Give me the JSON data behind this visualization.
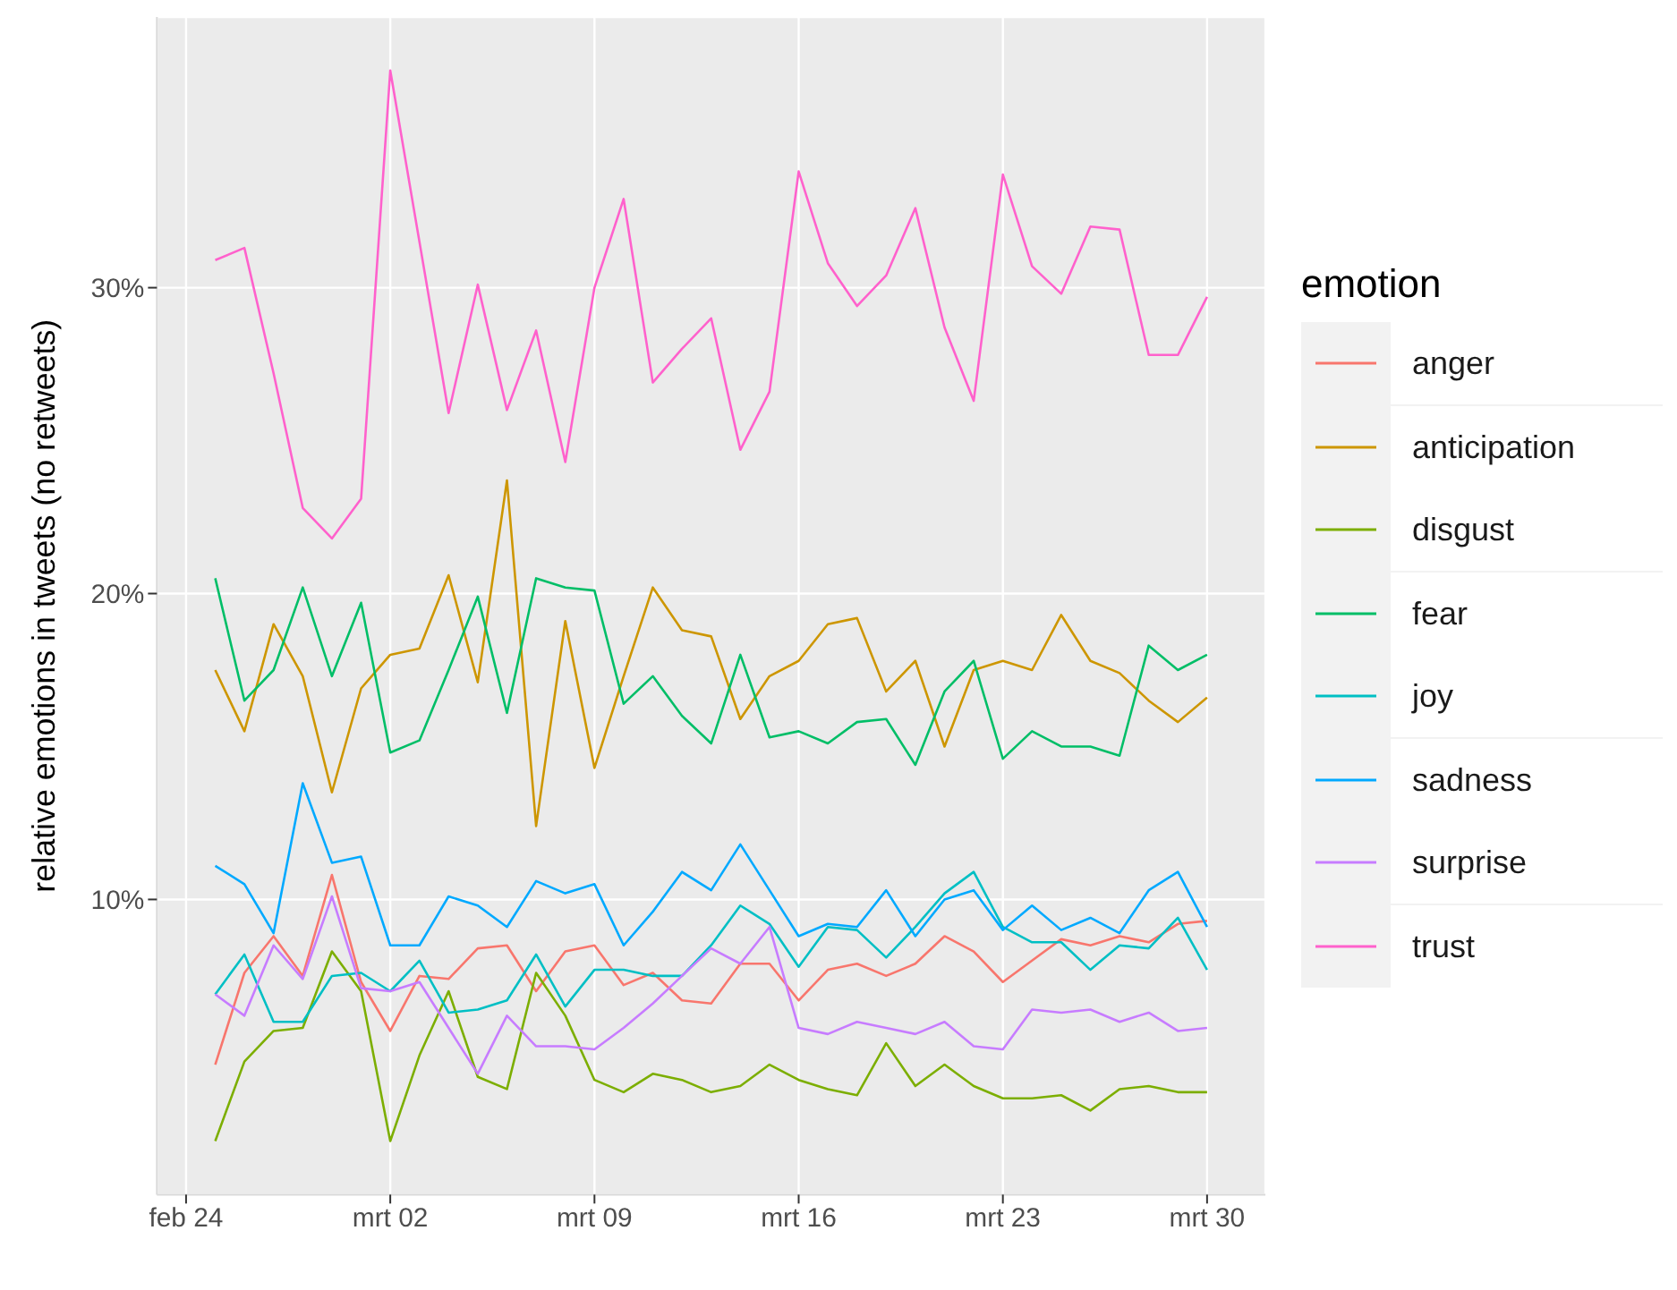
{
  "chart_data": {
    "type": "line",
    "ylabel": "relative emotions in tweets (no retweets)",
    "legend_title": "emotion",
    "legend": "right",
    "grid": true,
    "marker": "none",
    "line_style": "solid",
    "x": [
      "--02-25",
      "--02-26",
      "--02-27",
      "--02-28",
      "--02-29",
      "--03-01",
      "--03-02",
      "--03-03",
      "--03-04",
      "--03-05",
      "--03-06",
      "--03-07",
      "--03-08",
      "--03-09",
      "--03-10",
      "--03-11",
      "--03-12",
      "--03-13",
      "--03-14",
      "--03-15",
      "--03-16",
      "--03-17",
      "--03-18",
      "--03-19",
      "--03-20",
      "--03-21",
      "--03-22",
      "--03-23",
      "--03-24",
      "--03-25",
      "--03-26",
      "--03-27",
      "--03-28",
      "--03-29",
      "--03-30"
    ],
    "xlim": [
      "--02-23",
      "--04-01"
    ],
    "xticks": [
      {
        "value": "--02-24",
        "label": "feb 24"
      },
      {
        "value": "--03-02",
        "label": "mrt 02"
      },
      {
        "value": "--03-09",
        "label": "mrt 09"
      },
      {
        "value": "--03-16",
        "label": "mrt 16"
      },
      {
        "value": "--03-23",
        "label": "mrt 23"
      },
      {
        "value": "--03-30",
        "label": "mrt 30"
      }
    ],
    "ylim": [
      0.35,
      38.85
    ],
    "yticks": [
      {
        "value": 10,
        "label": "10%"
      },
      {
        "value": 20,
        "label": "20%"
      },
      {
        "value": 30,
        "label": "30%"
      }
    ],
    "series": [
      {
        "name": "anger",
        "color": "#f8766d",
        "values": [
          4.6,
          7.6,
          8.8,
          7.5,
          10.8,
          7.3,
          5.7,
          7.5,
          7.4,
          8.4,
          8.5,
          7.0,
          8.3,
          8.5,
          7.2,
          7.6,
          6.7,
          6.6,
          7.9,
          7.9,
          6.7,
          7.7,
          7.9,
          7.5,
          7.9,
          8.8,
          8.3,
          7.3,
          8.0,
          8.7,
          8.5,
          8.8,
          8.6,
          9.2,
          9.3
        ]
      },
      {
        "name": "anticipation",
        "color": "#cd9600",
        "values": [
          17.5,
          15.5,
          19.0,
          17.3,
          13.5,
          16.9,
          18.0,
          18.2,
          20.6,
          17.1,
          23.7,
          12.4,
          19.1,
          14.3,
          17.3,
          20.2,
          18.8,
          18.6,
          15.9,
          17.3,
          17.8,
          19.0,
          19.2,
          16.8,
          17.8,
          15.0,
          17.5,
          17.8,
          17.5,
          19.3,
          17.8,
          17.4,
          16.5,
          15.8,
          16.6
        ]
      },
      {
        "name": "disgust",
        "color": "#7cae00",
        "values": [
          2.1,
          4.7,
          5.7,
          5.8,
          8.3,
          7.0,
          2.1,
          4.9,
          7.0,
          4.2,
          3.8,
          7.6,
          6.2,
          4.1,
          3.7,
          4.3,
          4.1,
          3.7,
          3.9,
          4.6,
          4.1,
          3.8,
          3.6,
          5.3,
          3.9,
          4.6,
          3.9,
          3.5,
          3.5,
          3.6,
          3.1,
          3.8,
          3.9,
          3.7,
          3.7
        ]
      },
      {
        "name": "fear",
        "color": "#00be67",
        "values": [
          20.5,
          16.5,
          17.5,
          20.2,
          17.3,
          19.7,
          14.8,
          15.2,
          17.5,
          19.9,
          16.1,
          20.5,
          20.2,
          20.1,
          16.4,
          17.3,
          16.0,
          15.1,
          18.0,
          15.3,
          15.5,
          15.1,
          15.8,
          15.9,
          14.4,
          16.8,
          17.8,
          14.6,
          15.5,
          15.0,
          15.0,
          14.7,
          18.3,
          17.5,
          18.0
        ]
      },
      {
        "name": "joy",
        "color": "#00bfc4",
        "values": [
          6.9,
          8.2,
          6.0,
          6.0,
          7.5,
          7.6,
          7.0,
          8.0,
          6.3,
          6.4,
          6.7,
          8.2,
          6.5,
          7.7,
          7.7,
          7.5,
          7.5,
          8.5,
          9.8,
          9.2,
          7.8,
          9.1,
          9.0,
          8.1,
          9.1,
          10.2,
          10.9,
          9.1,
          8.6,
          8.6,
          7.7,
          8.5,
          8.4,
          9.4,
          7.7
        ]
      },
      {
        "name": "sadness",
        "color": "#00a9ff",
        "values": [
          11.1,
          10.5,
          8.9,
          13.8,
          11.2,
          11.4,
          8.5,
          8.5,
          10.1,
          9.8,
          9.1,
          10.6,
          10.2,
          10.5,
          8.5,
          9.6,
          10.9,
          10.3,
          11.8,
          10.3,
          8.8,
          9.2,
          9.1,
          10.3,
          8.8,
          10.0,
          10.3,
          9.0,
          9.8,
          9.0,
          9.4,
          8.9,
          10.3,
          10.9,
          9.1
        ]
      },
      {
        "name": "surprise",
        "color": "#c77cff",
        "values": [
          6.9,
          6.2,
          8.5,
          7.4,
          10.1,
          7.1,
          7.0,
          7.3,
          5.8,
          4.3,
          6.2,
          5.2,
          5.2,
          5.1,
          5.8,
          6.6,
          7.5,
          8.4,
          7.9,
          9.1,
          5.8,
          5.6,
          6.0,
          5.8,
          5.6,
          6.0,
          5.2,
          5.1,
          6.4,
          6.3,
          6.4,
          6.0,
          6.3,
          5.7,
          5.8
        ]
      },
      {
        "name": "trust",
        "color": "#ff61cc",
        "values": [
          30.9,
          31.3,
          27.2,
          22.8,
          21.8,
          23.1,
          37.1,
          31.5,
          25.9,
          30.1,
          26.0,
          28.6,
          24.3,
          30.0,
          32.9,
          26.9,
          28.0,
          29.0,
          24.7,
          26.6,
          33.8,
          30.8,
          29.4,
          30.4,
          32.6,
          28.7,
          26.3,
          33.7,
          30.7,
          29.8,
          32.0,
          31.9,
          27.8,
          27.8,
          29.7
        ]
      }
    ]
  }
}
